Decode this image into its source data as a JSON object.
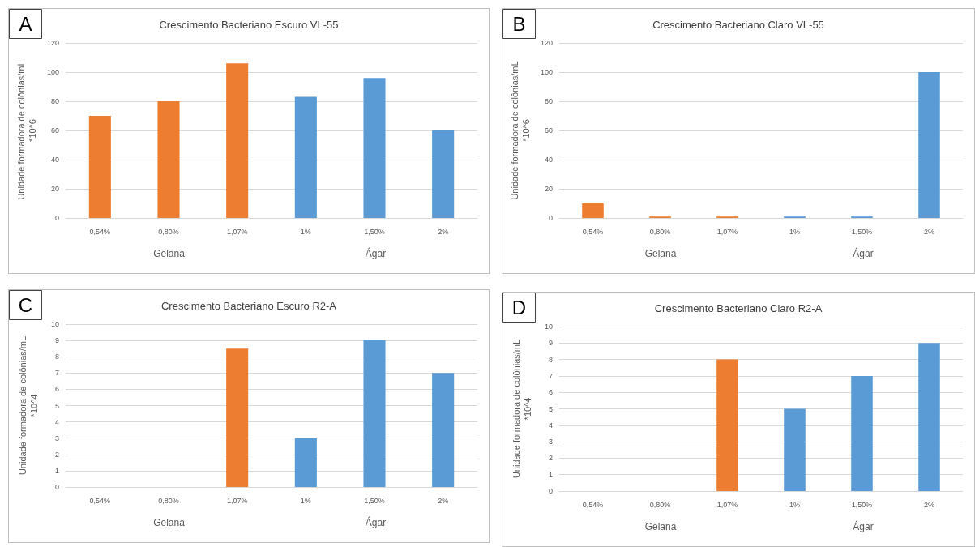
{
  "chart_data": [
    {
      "type": "bar",
      "title": "Crescimento Bacteriano Escuro VL-55",
      "ylabel": "Unidade formadora de colônias/mL\n*10^6",
      "categories": [
        "0,54%",
        "0,80%",
        "1,07%",
        "1%",
        "1,50%",
        "2%"
      ],
      "values": [
        70,
        80,
        106,
        83,
        96,
        60
      ],
      "colors": [
        "#ed7d31",
        "#ed7d31",
        "#ed7d31",
        "#5b9bd5",
        "#5b9bd5",
        "#5b9bd5"
      ],
      "ylim": [
        0,
        120
      ],
      "yticks": [
        0,
        20,
        40,
        60,
        80,
        100,
        120
      ],
      "grid": "y",
      "annotations": [
        "A",
        "Gelana",
        "Ágar"
      ]
    },
    {
      "type": "bar",
      "title": "Crescimento Bacteriano Claro VL-55",
      "ylabel": "Unidade formadora de colônias/mL\n*10^6",
      "categories": [
        "0,54%",
        "0,80%",
        "1,07%",
        "1%",
        "1,50%",
        "2%"
      ],
      "values": [
        10,
        1,
        1,
        1,
        1,
        100
      ],
      "colors": [
        "#ed7d31",
        "#ed7d31",
        "#ed7d31",
        "#5b9bd5",
        "#5b9bd5",
        "#5b9bd5"
      ],
      "ylim": [
        0,
        120
      ],
      "yticks": [
        0,
        20,
        40,
        60,
        80,
        100,
        120
      ],
      "grid": "y",
      "annotations": [
        "B",
        "Gelana",
        "Ágar"
      ]
    },
    {
      "type": "bar",
      "title": "Crescimento Bacteriano Escuro R2-A",
      "ylabel": "Unidade formadora de colônias/mL\n*10^4",
      "categories": [
        "0,54%",
        "0,80%",
        "1,07%",
        "1%",
        "1,50%",
        "2%"
      ],
      "values": [
        0,
        0,
        8.5,
        3,
        9,
        7
      ],
      "colors": [
        "#ed7d31",
        "#ed7d31",
        "#ed7d31",
        "#5b9bd5",
        "#5b9bd5",
        "#5b9bd5"
      ],
      "ylim": [
        0,
        10
      ],
      "yticks": [
        0,
        1,
        2,
        3,
        4,
        5,
        6,
        7,
        8,
        9,
        10
      ],
      "grid": "y",
      "annotations": [
        "C",
        "Gelana",
        "Ágar"
      ]
    },
    {
      "type": "bar",
      "title": "Crescimento Bacteriano Claro R2-A",
      "ylabel": "Unidade formadora de colônias/mL\n*10^4",
      "categories": [
        "0,54%",
        "0,80%",
        "1,07%",
        "1%",
        "1,50%",
        "2%"
      ],
      "values": [
        0,
        0,
        8,
        5,
        7,
        9
      ],
      "colors": [
        "#ed7d31",
        "#ed7d31",
        "#ed7d31",
        "#5b9bd5",
        "#5b9bd5",
        "#5b9bd5"
      ],
      "ylim": [
        0,
        10
      ],
      "yticks": [
        0,
        1,
        2,
        3,
        4,
        5,
        6,
        7,
        8,
        9,
        10
      ],
      "grid": "y",
      "annotations": [
        "D",
        "Gelana",
        "Ágar"
      ]
    }
  ]
}
